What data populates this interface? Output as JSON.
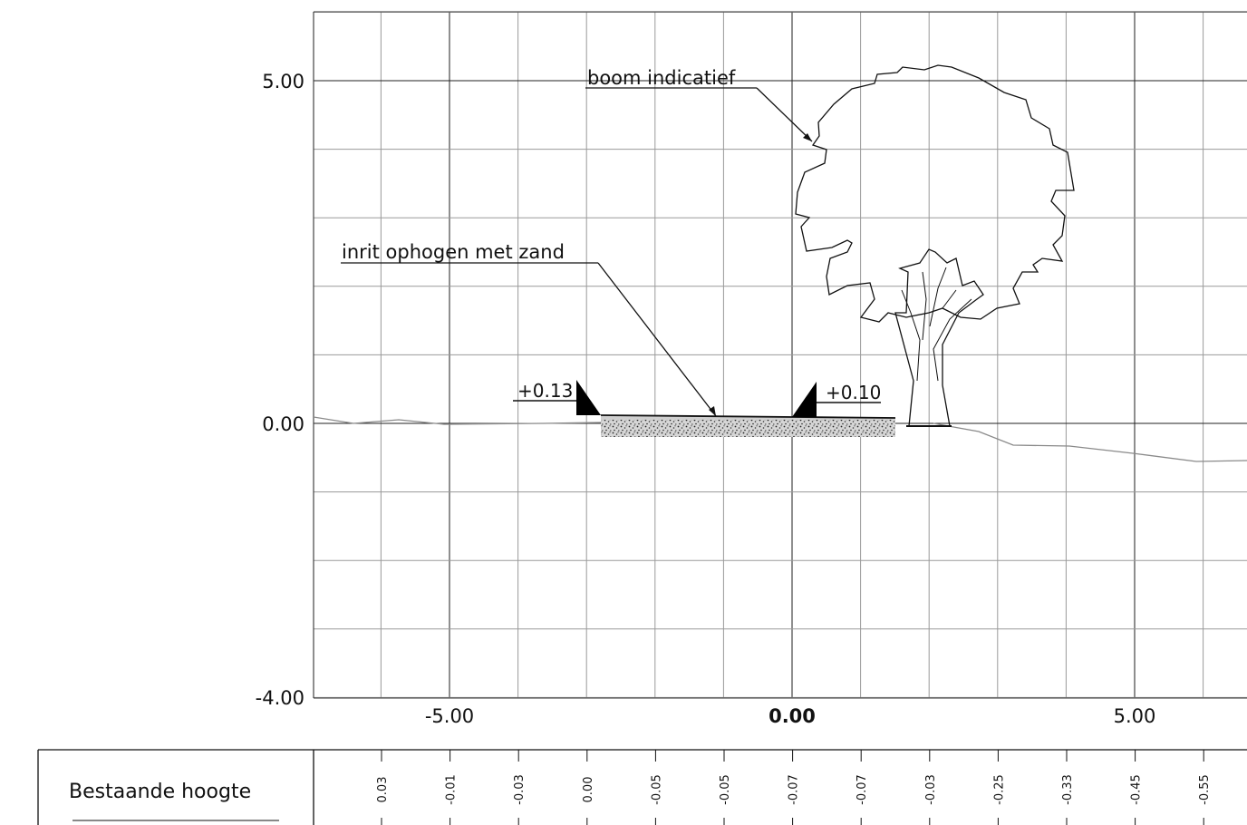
{
  "drawing": {
    "y_axis_labels": [
      "5.00",
      "0.00",
      "-4.00"
    ],
    "x_axis_labels": [
      "-5.00",
      "0.00",
      "5.00"
    ],
    "annotations": {
      "tree": "boom indicatief",
      "driveway": "inrit ophogen met zand"
    },
    "levels": {
      "left": "+0.13",
      "right": "+0.10"
    }
  },
  "table": {
    "row_label": "Bestaande hoogte",
    "values": [
      "0.03",
      "-0.01",
      "-0.03",
      "0.00",
      "-0.05",
      "-0.05",
      "-0.07",
      "-0.07",
      "-0.03",
      "-0.25",
      "-0.33",
      "-0.45",
      "-0.55"
    ]
  }
}
